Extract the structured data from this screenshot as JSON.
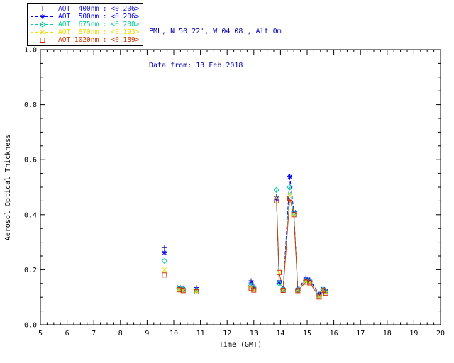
{
  "header": {
    "line1": "PML, N 50 22', W 04 08', Alt 0m",
    "line2": "Data from: 13 Feb 2018",
    "color": "#0000aa"
  },
  "chart_data": {
    "type": "line",
    "title": "",
    "xlabel": "Time (GMT)",
    "ylabel": "Aerosol Optical Thickness",
    "xlim": [
      5,
      20
    ],
    "ylim": [
      0.0,
      1.0
    ],
    "xticks": [
      5,
      6,
      7,
      8,
      9,
      10,
      11,
      12,
      13,
      14,
      15,
      16,
      17,
      18,
      19,
      20
    ],
    "ytick_labels": [
      "0.0",
      "0.2",
      "0.4",
      "0.6",
      "0.8",
      "1.0"
    ],
    "yticks": [
      0.0,
      0.2,
      0.4,
      0.6,
      0.8,
      1.0
    ],
    "grid": false,
    "legend_position": "top-left-outside",
    "x": [
      9.65,
      10.2,
      10.35,
      10.85,
      12.9,
      13.0,
      13.85,
      13.95,
      14.1,
      14.35,
      14.5,
      14.65,
      14.95,
      15.1,
      15.45,
      15.6,
      15.7
    ],
    "series": [
      {
        "name": "AOT 400nm",
        "legend_label": "AOT  400nm : <0.206>",
        "color": "#2222cc",
        "marker": "plus",
        "linestyle": "dashed",
        "values": [
          0.28,
          0.14,
          0.132,
          0.135,
          0.16,
          0.14,
          0.465,
          0.16,
          0.132,
          0.54,
          0.412,
          0.13,
          0.17,
          0.165,
          0.112,
          0.132,
          0.125
        ]
      },
      {
        "name": "AOT 500nm",
        "legend_label": "AOT  500nm : <0.206>",
        "color": "#0000ee",
        "marker": "asterisk",
        "linestyle": "dashed",
        "values": [
          0.262,
          0.136,
          0.13,
          0.13,
          0.152,
          0.136,
          0.458,
          0.155,
          0.13,
          0.538,
          0.41,
          0.128,
          0.166,
          0.161,
          0.11,
          0.13,
          0.122
        ]
      },
      {
        "name": "AOT 675nm",
        "legend_label": "AOT  675nm : <0.200>",
        "color": "#00cc99",
        "marker": "diamond",
        "linestyle": "dashed",
        "values": [
          0.232,
          0.132,
          0.128,
          0.125,
          0.143,
          0.131,
          0.49,
          0.15,
          0.128,
          0.5,
          0.406,
          0.126,
          0.161,
          0.157,
          0.106,
          0.128,
          0.12
        ]
      },
      {
        "name": "AOT 870nm",
        "legend_label": "AOT  870nm : <0.193>",
        "color": "#eedd00",
        "marker": "x",
        "linestyle": "dashed",
        "values": [
          0.2,
          0.129,
          0.126,
          0.122,
          0.137,
          0.128,
          0.462,
          0.188,
          0.127,
          0.472,
          0.402,
          0.125,
          0.158,
          0.154,
          0.103,
          0.126,
          0.117
        ]
      },
      {
        "name": "AOT 1020nm",
        "legend_label": "AOT 1020nm : <0.189>",
        "color": "#cc3300",
        "marker": "square",
        "linestyle": "solid",
        "values": [
          0.181,
          0.127,
          0.124,
          0.12,
          0.132,
          0.126,
          0.45,
          0.19,
          0.125,
          0.46,
          0.4,
          0.124,
          0.155,
          0.152,
          0.101,
          0.124,
          0.115
        ]
      }
    ]
  }
}
